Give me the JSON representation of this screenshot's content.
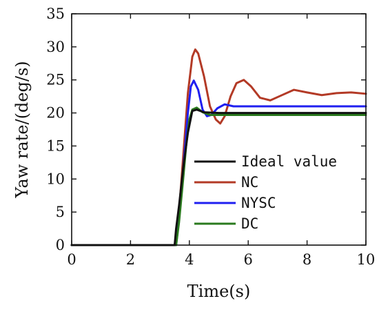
{
  "chart_data": {
    "type": "line",
    "title": "",
    "xlabel": "Time(s)",
    "ylabel": "Yaw rate/(deg/s)",
    "xlim": [
      0,
      10
    ],
    "ylim": [
      0,
      35
    ],
    "x_ticks": [
      0,
      2,
      4,
      6,
      8,
      10
    ],
    "y_ticks": [
      0,
      5,
      10,
      15,
      20,
      25,
      30,
      35
    ],
    "grid": false,
    "legend_position": "center-right",
    "series": [
      {
        "name": "Ideal value",
        "color": "#111111",
        "x": [
          0,
          3.5,
          3.55,
          3.65,
          3.8,
          3.95,
          4.1,
          4.25,
          4.5,
          5,
          6,
          7,
          8,
          9,
          10
        ],
        "y": [
          0,
          0,
          2.5,
          6,
          12,
          17,
          20.3,
          20.5,
          20.1,
          20,
          20,
          20,
          20,
          20,
          20
        ]
      },
      {
        "name": "NC",
        "color": "#b33a26",
        "x": [
          0,
          3.55,
          3.65,
          3.8,
          3.95,
          4.1,
          4.2,
          4.3,
          4.5,
          4.7,
          4.9,
          5.05,
          5.2,
          5.4,
          5.6,
          5.85,
          6.1,
          6.4,
          6.75,
          7.1,
          7.55,
          8,
          8.5,
          9,
          9.5,
          10
        ],
        "y": [
          0,
          0,
          5,
          14,
          23,
          28.5,
          29.6,
          29,
          25.5,
          21,
          19,
          18.4,
          19.5,
          22.5,
          24.5,
          25,
          24,
          22.3,
          21.9,
          22.6,
          23.5,
          23.1,
          22.7,
          23,
          23.1,
          22.9
        ]
      },
      {
        "name": "NYSC",
        "color": "#1f1ff0",
        "x": [
          0,
          3.55,
          3.65,
          3.8,
          3.95,
          4.05,
          4.15,
          4.3,
          4.45,
          4.6,
          4.75,
          4.95,
          5.2,
          5.5,
          6,
          7,
          8,
          9,
          10
        ],
        "y": [
          0,
          0,
          4,
          12,
          20,
          24,
          24.9,
          23.5,
          20.5,
          19.5,
          19.7,
          20.7,
          21.3,
          21,
          21,
          21,
          21,
          21,
          21
        ]
      },
      {
        "name": "DC",
        "color": "#2a7a1e",
        "x": [
          0,
          3.55,
          3.65,
          3.8,
          3.9,
          4.0,
          4.1,
          4.25,
          4.45,
          4.7,
          5,
          6,
          7,
          8,
          9,
          10
        ],
        "y": [
          0,
          0,
          3.5,
          10.5,
          15.5,
          19,
          20.5,
          20.8,
          20.1,
          19.7,
          19.7,
          19.7,
          19.7,
          19.7,
          19.7,
          19.7
        ]
      }
    ]
  }
}
